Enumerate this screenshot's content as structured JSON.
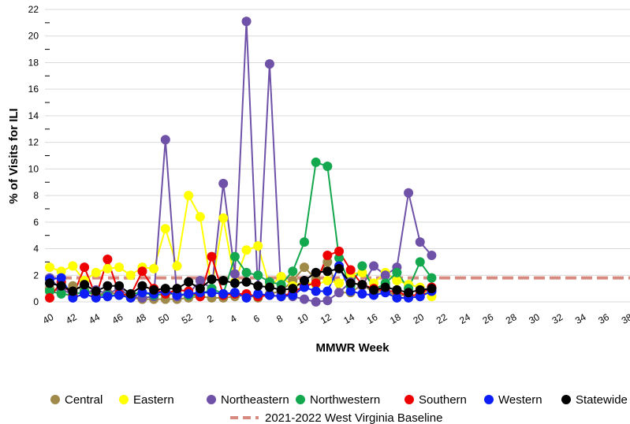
{
  "chart_data": {
    "type": "line",
    "xlabel": "MMWR Week",
    "ylabel": "% of Visits for ILI",
    "ylim": [
      0,
      22
    ],
    "y_ticks": [
      0,
      2,
      4,
      6,
      8,
      10,
      12,
      14,
      16,
      18,
      20,
      22
    ],
    "weeks": [
      40,
      41,
      42,
      43,
      44,
      45,
      46,
      47,
      48,
      49,
      50,
      51,
      52,
      1,
      2,
      3,
      4,
      5,
      6,
      7,
      8,
      9,
      10,
      11,
      12,
      13,
      14,
      15,
      16,
      17,
      18,
      19,
      20,
      21,
      22,
      23,
      24,
      25,
      26,
      27,
      28,
      29,
      30,
      31,
      32,
      33,
      34,
      35,
      36,
      37,
      38,
      39
    ],
    "x_tick_labels": [
      "40",
      "42",
      "44",
      "46",
      "48",
      "50",
      "52",
      "2",
      "4",
      "6",
      "8",
      "10",
      "12",
      "14",
      "16",
      "18",
      "20",
      "22",
      "24",
      "26",
      "28",
      "30",
      "32",
      "34",
      "36",
      "38"
    ],
    "grid": "horizontal",
    "legend_position": "bottom",
    "series": [
      {
        "name": "Central",
        "color": "#a08a4a",
        "values": [
          1.0,
          0.8,
          1.2,
          0.9,
          0.5,
          0.7,
          0.6,
          0.3,
          0.2,
          0.2,
          0.2,
          0.2,
          0.3,
          0.4,
          0.3,
          0.3,
          0.4,
          0.5,
          0.3,
          0.6,
          0.8,
          1.6,
          2.6,
          1.7,
          3.0,
          0.7,
          0.7,
          1.3,
          0.7,
          0.8,
          0.5,
          0.5,
          0.5,
          0.8
        ]
      },
      {
        "name": "Eastern",
        "color": "#ffff00",
        "values": [
          2.6,
          2.3,
          2.7,
          1.6,
          2.2,
          2.5,
          2.6,
          2.0,
          2.6,
          2.5,
          5.5,
          2.7,
          8.0,
          6.4,
          1.0,
          6.3,
          1.5,
          3.9,
          4.2,
          1.2,
          1.9,
          1.2,
          1.5,
          1.3,
          1.6,
          1.4,
          2.1,
          2.2,
          1.4,
          2.2,
          1.6,
          1.3,
          1.1,
          0.4
        ]
      },
      {
        "name": "Northeastern",
        "color": "#6f52a8",
        "values": [
          1.8,
          0.9,
          0.6,
          0.7,
          0.9,
          0.6,
          1.0,
          0.4,
          0.3,
          0.4,
          12.2,
          0.4,
          0.6,
          1.6,
          1.0,
          8.9,
          2.1,
          21.1,
          0.6,
          17.9,
          0.6,
          0.4,
          0.2,
          0.0,
          0.1,
          0.7,
          1.5,
          1.2,
          2.7,
          2.0,
          2.6,
          8.2,
          4.5,
          3.5
        ]
      },
      {
        "name": "Northwestern",
        "color": "#13a84e",
        "values": [
          0.8,
          0.6,
          0.5,
          0.8,
          0.5,
          0.5,
          0.5,
          0.6,
          0.7,
          0.5,
          0.6,
          0.6,
          0.5,
          0.5,
          1.0,
          0.6,
          3.4,
          2.2,
          2.0,
          1.5,
          1.3,
          2.3,
          4.5,
          10.5,
          10.2,
          3.3,
          1.2,
          2.7,
          0.9,
          1.4,
          2.2,
          1.0,
          3.0,
          1.8
        ]
      },
      {
        "name": "Southern",
        "color": "#ef0000",
        "values": [
          0.3,
          1.5,
          0.4,
          2.6,
          0.4,
          3.2,
          0.6,
          0.5,
          2.3,
          1.0,
          0.6,
          0.9,
          0.8,
          0.4,
          3.4,
          0.5,
          0.6,
          0.6,
          0.4,
          0.5,
          0.4,
          0.7,
          1.2,
          1.4,
          3.5,
          3.8,
          2.4,
          1.3,
          1.0,
          0.8,
          0.8,
          0.4,
          0.6,
          1.1
        ]
      },
      {
        "name": "Western",
        "color": "#0d1df5",
        "values": [
          1.7,
          1.8,
          0.3,
          0.6,
          0.3,
          0.4,
          0.5,
          0.3,
          0.7,
          0.6,
          0.8,
          0.5,
          0.6,
          0.7,
          0.7,
          0.6,
          0.7,
          0.3,
          0.6,
          0.5,
          0.4,
          0.5,
          1.1,
          0.8,
          0.8,
          2.7,
          0.8,
          0.6,
          0.5,
          0.7,
          0.3,
          0.3,
          0.4,
          0.8
        ]
      },
      {
        "name": "Statewide",
        "color": "#000000",
        "values": [
          1.4,
          1.2,
          0.8,
          1.3,
          0.8,
          1.2,
          1.2,
          0.6,
          1.2,
          0.9,
          1.0,
          1.0,
          1.5,
          1.0,
          1.7,
          1.6,
          1.4,
          1.5,
          1.2,
          1.1,
          0.9,
          1.0,
          1.6,
          2.2,
          2.3,
          2.5,
          1.4,
          1.3,
          0.9,
          1.1,
          0.9,
          0.7,
          0.9,
          1.0
        ]
      }
    ],
    "baseline": {
      "name": "2021-2022 West Virginia Baseline",
      "value": 1.8,
      "color": "#d88a80"
    }
  }
}
